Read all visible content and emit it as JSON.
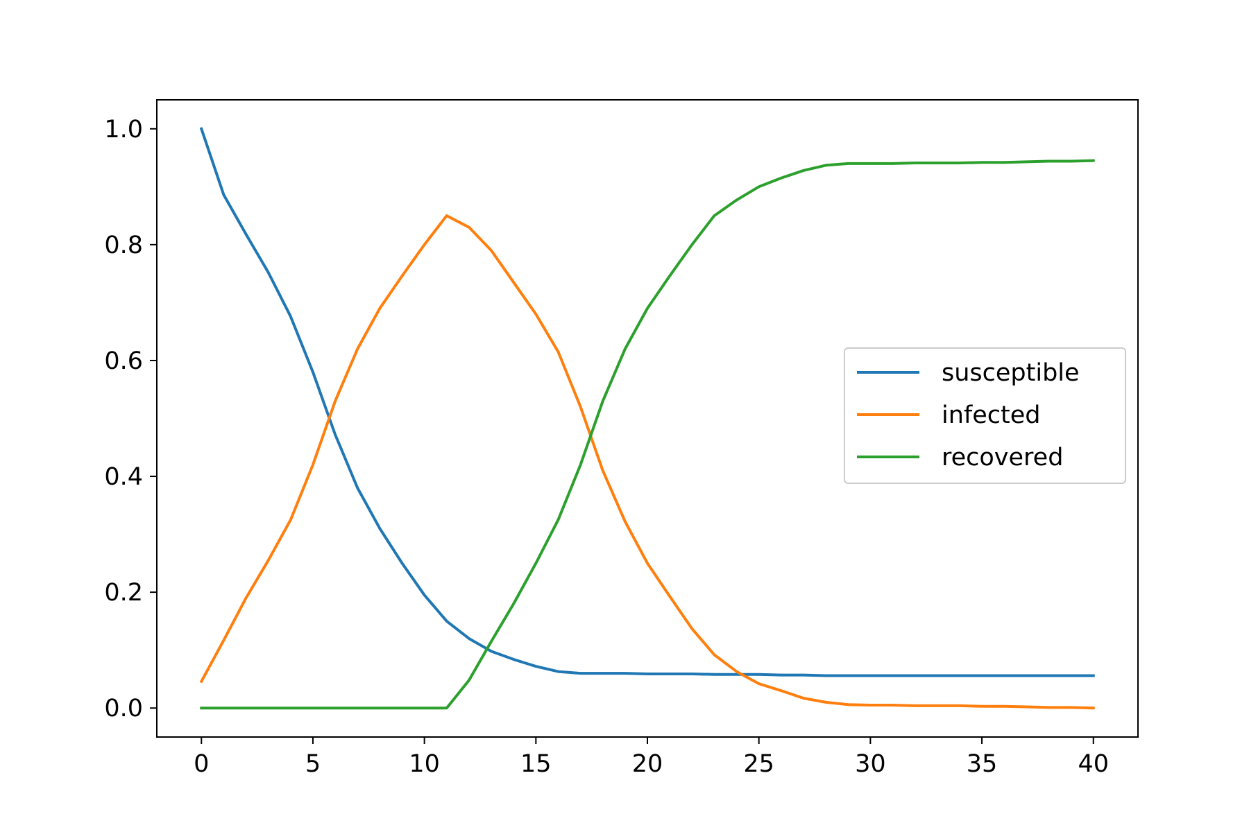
{
  "chart_data": {
    "type": "line",
    "title": "",
    "xlabel": "",
    "ylabel": "",
    "xlim": [
      -2,
      42
    ],
    "ylim": [
      -0.05,
      1.05
    ],
    "xticks": [
      0,
      5,
      10,
      15,
      20,
      25,
      30,
      35,
      40
    ],
    "yticks": [
      0.0,
      0.2,
      0.4,
      0.6,
      0.8,
      1.0
    ],
    "xtick_labels": [
      "0",
      "5",
      "10",
      "15",
      "20",
      "25",
      "30",
      "35",
      "40"
    ],
    "ytick_labels": [
      "0.0",
      "0.2",
      "0.4",
      "0.6",
      "0.8",
      "1.0"
    ],
    "grid": false,
    "legend_position": "center-right",
    "x": [
      0,
      1,
      2,
      3,
      4,
      5,
      6,
      7,
      8,
      9,
      10,
      11,
      12,
      13,
      14,
      15,
      16,
      17,
      18,
      19,
      20,
      21,
      22,
      23,
      24,
      25,
      26,
      27,
      28,
      29,
      30,
      31,
      32,
      33,
      34,
      35,
      36,
      37,
      38,
      39,
      40
    ],
    "series": [
      {
        "name": "susceptible",
        "color": "#1f77b4",
        "values": [
          1.0,
          0.886,
          0.818,
          0.752,
          0.676,
          0.58,
          0.472,
          0.38,
          0.31,
          0.25,
          0.195,
          0.15,
          0.12,
          0.098,
          0.084,
          0.072,
          0.063,
          0.06,
          0.06,
          0.06,
          0.059,
          0.059,
          0.059,
          0.058,
          0.058,
          0.058,
          0.057,
          0.057,
          0.056,
          0.056,
          0.056,
          0.056,
          0.056,
          0.056,
          0.056,
          0.056,
          0.056,
          0.056,
          0.056,
          0.056,
          0.056
        ]
      },
      {
        "name": "infected",
        "color": "#ff7f0e",
        "values": [
          0.046,
          0.117,
          0.19,
          0.255,
          0.325,
          0.42,
          0.53,
          0.62,
          0.69,
          0.746,
          0.8,
          0.85,
          0.83,
          0.79,
          0.735,
          0.68,
          0.615,
          0.52,
          0.41,
          0.322,
          0.25,
          0.193,
          0.137,
          0.092,
          0.063,
          0.042,
          0.03,
          0.017,
          0.01,
          0.006,
          0.005,
          0.005,
          0.004,
          0.004,
          0.004,
          0.003,
          0.003,
          0.002,
          0.001,
          0.001,
          0.0
        ]
      },
      {
        "name": "recovered",
        "color": "#2ca02c",
        "values": [
          0.0,
          0.0,
          0.0,
          0.0,
          0.0,
          0.0,
          0.0,
          0.0,
          0.0,
          0.0,
          0.0,
          0.0,
          0.048,
          0.115,
          0.18,
          0.25,
          0.325,
          0.42,
          0.53,
          0.62,
          0.69,
          0.746,
          0.8,
          0.85,
          0.877,
          0.9,
          0.915,
          0.928,
          0.937,
          0.94,
          0.94,
          0.94,
          0.941,
          0.941,
          0.941,
          0.942,
          0.942,
          0.943,
          0.944,
          0.944,
          0.945
        ]
      }
    ]
  }
}
